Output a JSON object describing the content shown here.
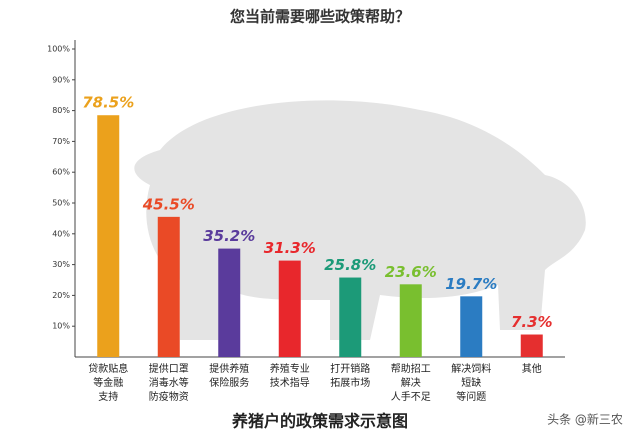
{
  "chart_data": {
    "type": "bar",
    "title": "您当前需要哪些政策帮助？",
    "subtitle": "养猪户的政策需求示意图",
    "watermark": "头条 @新三农",
    "categories": [
      [
        "贷款贴息",
        "等金融",
        "支持"
      ],
      [
        "提供口罩",
        "消毒水等",
        "防疫物资"
      ],
      [
        "提供养殖",
        "保险服务"
      ],
      [
        "养殖专业",
        "技术指导"
      ],
      [
        "打开销路",
        "拓展市场"
      ],
      [
        "帮助招工",
        "解决",
        "人手不足"
      ],
      [
        "解决饲料",
        "短缺",
        "等问题"
      ],
      [
        "其他"
      ]
    ],
    "values": [
      78.5,
      45.5,
      35.2,
      31.3,
      25.8,
      23.6,
      19.7,
      7.3
    ],
    "value_labels": [
      "78.5%",
      "45.5%",
      "35.2%",
      "31.3%",
      "25.8%",
      "23.6%",
      "19.7%",
      "7.3%"
    ],
    "colors": [
      "#eba11c",
      "#ea4a26",
      "#5a3b9c",
      "#e8272c",
      "#1c9a78",
      "#79bf2f",
      "#2b7cc2",
      "#e52f2f"
    ],
    "ylim": [
      0,
      100
    ],
    "yticks": [
      {
        "value": 10,
        "label": "10%"
      },
      {
        "value": 20,
        "label": "20%"
      },
      {
        "value": 30,
        "label": "30%"
      },
      {
        "value": 40,
        "label": "40%"
      },
      {
        "value": 50,
        "label": "50%"
      },
      {
        "value": 60,
        "label": "60%"
      },
      {
        "value": 70,
        "label": "70%"
      },
      {
        "value": 80,
        "label": "80%"
      },
      {
        "value": 90,
        "label": "90%"
      },
      {
        "value": 100,
        "label": "100%"
      }
    ]
  }
}
